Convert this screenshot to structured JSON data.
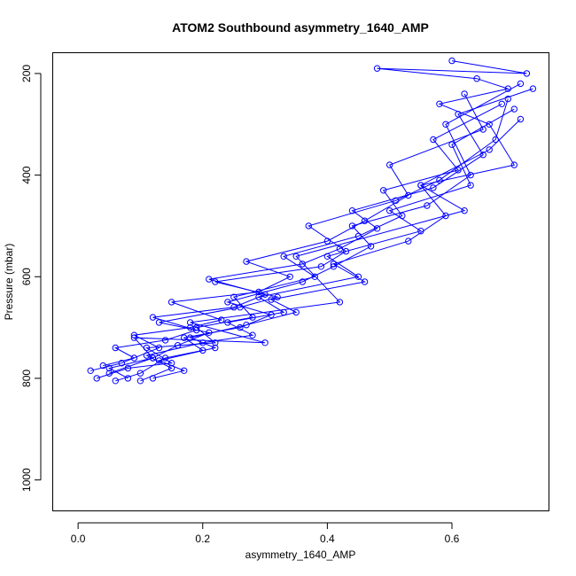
{
  "chart_data": {
    "type": "line",
    "title": "ATOM2 Southbound asymmetry_1640_AMP",
    "xlabel": "asymmetry_1640_AMP",
    "ylabel": "Pressure (mbar)",
    "xlim": [
      -0.04,
      0.755
    ],
    "ylim": [
      1060,
      160
    ],
    "y_reversed": true,
    "x_ticks": [
      0.0,
      0.2,
      0.4,
      0.6
    ],
    "x_tick_labels": [
      "0.0",
      "0.2",
      "0.4",
      "0.6"
    ],
    "y_ticks": [
      200,
      400,
      600,
      800,
      1000
    ],
    "y_tick_labels": [
      "200",
      "400",
      "600",
      "800",
      "1000"
    ],
    "grid": false,
    "series_color": "#0000ff",
    "series": [
      {
        "x": [
          0.05,
          0.12,
          0.09,
          0.3,
          0.18,
          0.42,
          0.35,
          0.62,
          0.55,
          0.7,
          0.66,
          0.58,
          0.69,
          0.64,
          0.48,
          0.72,
          0.6
        ],
        "y": [
          790,
          760,
          720,
          730,
          690,
          650,
          560,
          470,
          420,
          380,
          300,
          260,
          230,
          210,
          190,
          200,
          175
        ]
      },
      {
        "x": [
          0.03,
          0.08,
          0.15,
          0.11,
          0.22,
          0.19,
          0.28,
          0.25,
          0.38,
          0.33,
          0.45,
          0.52,
          0.49,
          0.61,
          0.57,
          0.68
        ],
        "y": [
          800,
          780,
          770,
          740,
          730,
          700,
          680,
          640,
          600,
          560,
          520,
          480,
          430,
          390,
          330,
          260
        ]
      },
      {
        "x": [
          0.06,
          0.1,
          0.14,
          0.2,
          0.17,
          0.26,
          0.31,
          0.24,
          0.36,
          0.41,
          0.47,
          0.44,
          0.56,
          0.63,
          0.59,
          0.71
        ],
        "y": [
          805,
          790,
          760,
          745,
          720,
          700,
          675,
          650,
          610,
          580,
          540,
          500,
          460,
          400,
          300,
          220
        ]
      },
      {
        "x": [
          0.02,
          0.07,
          0.13,
          0.09,
          0.18,
          0.23,
          0.15,
          0.29,
          0.34,
          0.27,
          0.4,
          0.46,
          0.53,
          0.5,
          0.65,
          0.62
        ],
        "y": [
          785,
          770,
          740,
          715,
          700,
          685,
          650,
          630,
          600,
          570,
          530,
          490,
          440,
          380,
          310,
          240
        ]
      },
      {
        "x": [
          0.08,
          0.05,
          0.12,
          0.16,
          0.21,
          0.13,
          0.26,
          0.32,
          0.22,
          0.39,
          0.43,
          0.37,
          0.51,
          0.58,
          0.67,
          0.69
        ],
        "y": [
          800,
          780,
          760,
          735,
          710,
          690,
          660,
          640,
          610,
          580,
          550,
          500,
          450,
          410,
          330,
          250
        ]
      },
      {
        "x": [
          0.1,
          0.15,
          0.11,
          0.2,
          0.28,
          0.24,
          0.33,
          0.29,
          0.45,
          0.4,
          0.55,
          0.5,
          0.63,
          0.6,
          0.7
        ],
        "y": [
          805,
          780,
          755,
          730,
          715,
          690,
          670,
          640,
          600,
          560,
          510,
          470,
          420,
          340,
          270
        ]
      },
      {
        "x": [
          0.04,
          0.09,
          0.06,
          0.14,
          0.19,
          0.12,
          0.25,
          0.3,
          0.21,
          0.36,
          0.42,
          0.48,
          0.44,
          0.57,
          0.65,
          0.61,
          0.73
        ],
        "y": [
          775,
          760,
          740,
          725,
          705,
          680,
          660,
          635,
          605,
          575,
          545,
          505,
          470,
          425,
          360,
          280,
          230
        ]
      },
      {
        "x": [
          0.12,
          0.17,
          0.13,
          0.22,
          0.18,
          0.27,
          0.35,
          0.31,
          0.46,
          0.41,
          0.53,
          0.59,
          0.55,
          0.66,
          0.71
        ],
        "y": [
          800,
          785,
          765,
          740,
          720,
          695,
          670,
          645,
          610,
          575,
          530,
          480,
          420,
          350,
          290
        ]
      }
    ]
  }
}
